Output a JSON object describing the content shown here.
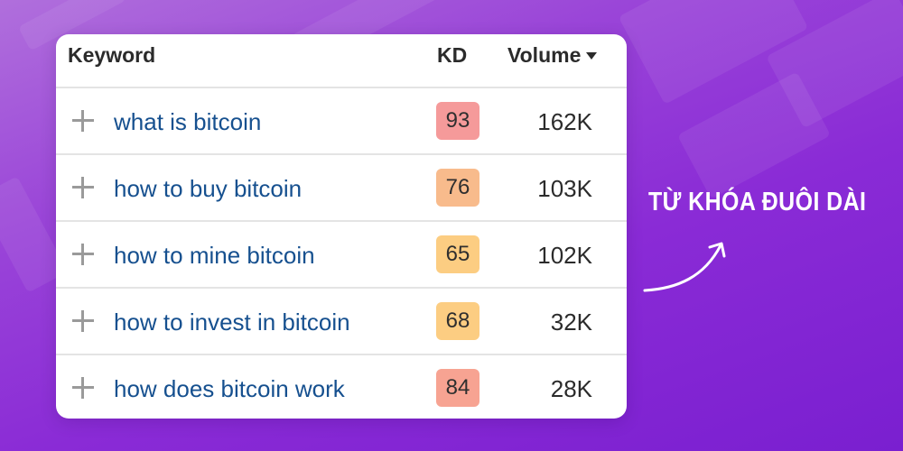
{
  "table": {
    "headers": {
      "keyword": "Keyword",
      "kd": "KD",
      "volume": "Volume"
    },
    "sort_icon": "triangle-down-icon",
    "rows": [
      {
        "keyword": "what is bitcoin",
        "kd": "93",
        "volume": "162K",
        "kd_color": "#f59a9a"
      },
      {
        "keyword": "how to buy bitcoin",
        "kd": "76",
        "volume": "103K",
        "kd_color": "#f8bb8c"
      },
      {
        "keyword": "how to mine bitcoin",
        "kd": "65",
        "volume": "102K",
        "kd_color": "#fccd82"
      },
      {
        "keyword": "how to invest in bitcoin",
        "kd": "68",
        "volume": "32K",
        "kd_color": "#fccd82"
      },
      {
        "keyword": "how does bitcoin work",
        "kd": "84",
        "volume": "28K",
        "kd_color": "#f7a392"
      }
    ],
    "row_icon": "plus-icon"
  },
  "side_label": "TỪ KHÓA ĐUÔI DÀI",
  "colors": {
    "keyword_link": "#16508f",
    "background_from": "#b06fdc",
    "background_to": "#7a1fd0"
  }
}
